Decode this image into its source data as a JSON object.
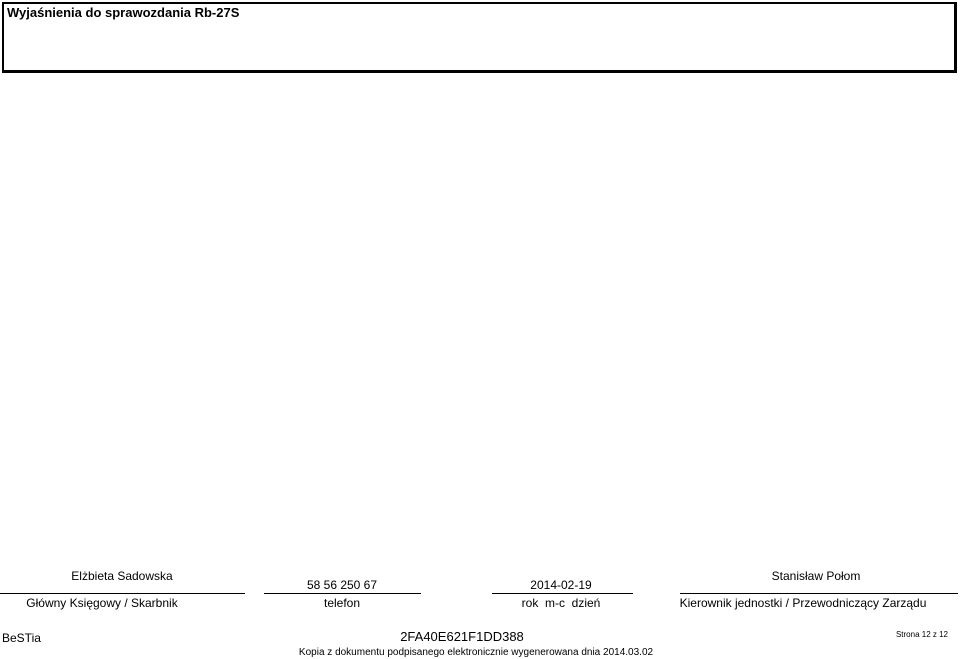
{
  "header": {
    "title": "Wyjaśnienia do sprawozdania Rb-27S"
  },
  "signatures": {
    "accountant": {
      "name": "Elżbieta Sadowska",
      "role": "Główny Księgowy / Skarbnik"
    },
    "phone": {
      "value": "58 56 250 67",
      "label": "telefon"
    },
    "date": {
      "value": "2014-02-19",
      "label": "rok  m-c  dzień"
    },
    "head": {
      "name": "Stanisław Połom",
      "role": "Kierownik jednostki / Przewodniczący Zarządu"
    }
  },
  "footer": {
    "system": "BeSTia",
    "code": "2FA40E621F1DD388",
    "page": "Strona 12 z 12",
    "note": "Kopia z dokumentu podpisanego elektronicznie wygenerowana dnia 2014.03.02"
  }
}
